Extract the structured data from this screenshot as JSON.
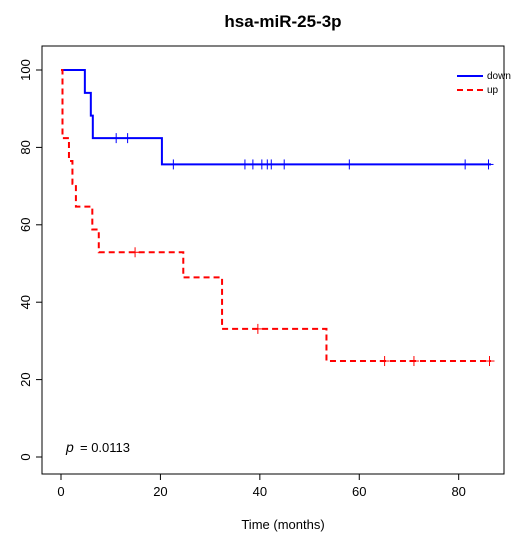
{
  "chart_data": {
    "type": "line",
    "title": "hsa-miR-25-3p",
    "xlabel": "Time (months)",
    "ylabel": "",
    "xlim": [
      0,
      86.5
    ],
    "ylim": [
      0,
      100
    ],
    "xticks": [
      0,
      20,
      40,
      60,
      80
    ],
    "yticks": [
      0,
      20,
      40,
      60,
      80,
      100
    ],
    "grid": false,
    "legend_position": "top-right",
    "annotation": {
      "p_symbol": "p",
      "p_text": "= 0.0113"
    },
    "series": [
      {
        "name": "down",
        "color": "#0000ff",
        "dash": "solid",
        "steps": [
          [
            0,
            100
          ],
          [
            4.8,
            94.1
          ],
          [
            6.0,
            88.2
          ],
          [
            6.4,
            82.4
          ],
          [
            20.3,
            75.6
          ],
          [
            86.5,
            75.6
          ]
        ],
        "censors": [
          [
            11.1,
            82.4
          ],
          [
            13.4,
            82.4
          ],
          [
            22.6,
            75.6
          ],
          [
            37.0,
            75.6
          ],
          [
            38.6,
            75.6
          ],
          [
            40.4,
            75.6
          ],
          [
            41.5,
            75.6
          ],
          [
            42.3,
            75.6
          ],
          [
            44.9,
            75.6
          ],
          [
            58.0,
            75.6
          ],
          [
            81.3,
            75.6
          ],
          [
            86.0,
            75.6
          ]
        ]
      },
      {
        "name": "up",
        "color": "#ff0000",
        "dash": "dashed",
        "steps": [
          [
            0,
            100
          ],
          [
            0.3,
            82.4
          ],
          [
            1.6,
            76.5
          ],
          [
            2.3,
            70.6
          ],
          [
            3.0,
            64.7
          ],
          [
            6.3,
            58.8
          ],
          [
            7.6,
            52.9
          ],
          [
            24.6,
            46.4
          ],
          [
            32.4,
            33.1
          ],
          [
            53.4,
            24.8
          ],
          [
            86.5,
            24.8
          ]
        ],
        "censors": [
          [
            14.9,
            52.9
          ],
          [
            39.6,
            33.1
          ],
          [
            65.1,
            24.8
          ],
          [
            71.0,
            24.8
          ],
          [
            86.2,
            24.8
          ]
        ]
      }
    ]
  }
}
